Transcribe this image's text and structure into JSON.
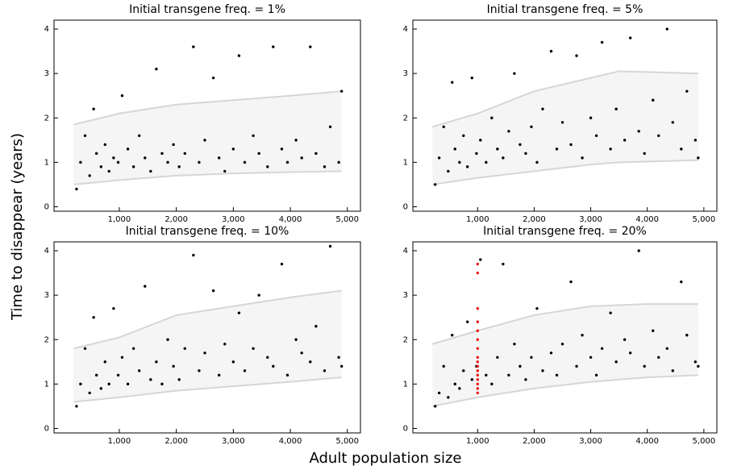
{
  "ylabel": "Time to disappear (years)",
  "xlabel": "Adult population size",
  "chart_data": [
    {
      "type": "scatter",
      "title": "Initial transgene freq. = 1%",
      "xlim": [
        -145,
        5230
      ],
      "ylim": [
        -0.1,
        4.2
      ],
      "xticks": [
        {
          "value": 1000,
          "label": "1,000"
        },
        {
          "value": 2000,
          "label": "2,000"
        },
        {
          "value": 3000,
          "label": "3,000"
        },
        {
          "value": 4000,
          "label": "4,000"
        },
        {
          "value": 5000,
          "label": "5,000"
        }
      ],
      "yticks": [
        0,
        1,
        2,
        3,
        4
      ],
      "band": {
        "color": "#d6d6d6",
        "x": [
          200,
          1000,
          2000,
          3000,
          4000,
          4900
        ],
        "upper": [
          1.85,
          2.1,
          2.3,
          2.4,
          2.5,
          2.6
        ],
        "lower": [
          0.5,
          0.6,
          0.7,
          0.75,
          0.78,
          0.8
        ]
      },
      "series": [
        {
          "color": "#000000",
          "x": [
            250,
            320,
            400,
            480,
            550,
            600,
            680,
            750,
            820,
            900,
            980,
            1050,
            1150,
            1250,
            1350,
            1450,
            1550,
            1650,
            1750,
            1850,
            1950,
            2050,
            2150,
            2300,
            2400,
            2500,
            2650,
            2750,
            2850,
            3000,
            3100,
            3200,
            3350,
            3450,
            3600,
            3700,
            3850,
            3950,
            4100,
            4200,
            4350,
            4450,
            4600,
            4700,
            4850,
            4900
          ],
          "values": [
            0.4,
            1.0,
            1.6,
            0.7,
            2.2,
            1.2,
            0.9,
            1.4,
            0.8,
            1.1,
            1.0,
            2.5,
            1.3,
            0.9,
            1.6,
            1.1,
            0.8,
            3.1,
            1.2,
            1.0,
            1.4,
            0.9,
            1.2,
            3.6,
            1.0,
            1.5,
            2.9,
            1.1,
            0.8,
            1.3,
            3.4,
            1.0,
            1.6,
            1.2,
            0.9,
            3.6,
            1.3,
            1.0,
            1.5,
            1.1,
            3.6,
            1.2,
            0.9,
            1.8,
            1.0,
            2.6
          ]
        }
      ]
    },
    {
      "type": "scatter",
      "title": "Initial transgene freq. = 5%",
      "xlim": [
        -145,
        5230
      ],
      "ylim": [
        -0.1,
        4.2
      ],
      "xticks": [
        {
          "value": 1000,
          "label": "1,000"
        },
        {
          "value": 2000,
          "label": "2,000"
        },
        {
          "value": 3000,
          "label": "3,000"
        },
        {
          "value": 4000,
          "label": "4,000"
        },
        {
          "value": 5000,
          "label": "5,000"
        }
      ],
      "yticks": [
        0,
        1,
        2,
        3,
        4
      ],
      "band": {
        "color": "#d6d6d6",
        "x": [
          200,
          1000,
          2000,
          3000,
          3500,
          4900
        ],
        "upper": [
          1.8,
          2.1,
          2.6,
          2.9,
          3.05,
          3.0
        ],
        "lower": [
          0.5,
          0.65,
          0.8,
          0.95,
          1.0,
          1.05
        ]
      },
      "series": [
        {
          "color": "#000000",
          "x": [
            250,
            320,
            400,
            480,
            550,
            600,
            680,
            750,
            820,
            900,
            980,
            1050,
            1150,
            1250,
            1350,
            1450,
            1550,
            1650,
            1750,
            1850,
            1950,
            2050,
            2150,
            2300,
            2400,
            2500,
            2650,
            2750,
            2850,
            3000,
            3100,
            3200,
            3350,
            3450,
            3600,
            3700,
            3850,
            3950,
            4100,
            4200,
            4350,
            4450,
            4600,
            4700,
            4850,
            4900
          ],
          "values": [
            0.5,
            1.1,
            1.8,
            0.8,
            2.8,
            1.3,
            1.0,
            1.6,
            0.9,
            2.9,
            1.2,
            1.5,
            1.0,
            2.0,
            1.3,
            1.1,
            1.7,
            3.0,
            1.4,
            1.2,
            1.8,
            1.0,
            2.2,
            3.5,
            1.3,
            1.9,
            1.4,
            3.4,
            1.1,
            2.0,
            1.6,
            3.7,
            1.3,
            2.2,
            1.5,
            3.8,
            1.7,
            1.2,
            2.4,
            1.6,
            4.0,
            1.9,
            1.3,
            2.6,
            1.5,
            1.1
          ]
        }
      ]
    },
    {
      "type": "scatter",
      "title": "Initial transgene freq. = 10%",
      "xlim": [
        -145,
        5230
      ],
      "ylim": [
        -0.1,
        4.2
      ],
      "xticks": [
        {
          "value": 1000,
          "label": "1,000"
        },
        {
          "value": 2000,
          "label": "2,000"
        },
        {
          "value": 3000,
          "label": "3,000"
        },
        {
          "value": 4000,
          "label": "4,000"
        },
        {
          "value": 5000,
          "label": "5,000"
        }
      ],
      "yticks": [
        0,
        1,
        2,
        3,
        4
      ],
      "band": {
        "color": "#d6d6d6",
        "x": [
          200,
          1000,
          2000,
          3000,
          4000,
          4900
        ],
        "upper": [
          1.8,
          2.05,
          2.55,
          2.75,
          2.95,
          3.1
        ],
        "lower": [
          0.6,
          0.7,
          0.85,
          0.95,
          1.05,
          1.15
        ]
      },
      "series": [
        {
          "color": "#000000",
          "x": [
            250,
            320,
            400,
            480,
            550,
            600,
            680,
            750,
            820,
            900,
            980,
            1050,
            1150,
            1250,
            1350,
            1450,
            1550,
            1650,
            1750,
            1850,
            1950,
            2050,
            2150,
            2300,
            2400,
            2500,
            2650,
            2750,
            2850,
            3000,
            3100,
            3200,
            3350,
            3450,
            3600,
            3700,
            3850,
            3950,
            4100,
            4200,
            4350,
            4450,
            4600,
            4700,
            4850,
            4900
          ],
          "values": [
            0.5,
            1.0,
            1.8,
            0.8,
            2.5,
            1.2,
            0.9,
            1.5,
            1.0,
            2.7,
            1.2,
            1.6,
            1.0,
            1.8,
            1.3,
            3.2,
            1.1,
            1.5,
            1.0,
            2.0,
            1.4,
            1.1,
            1.8,
            3.9,
            1.3,
            1.7,
            3.1,
            1.2,
            1.9,
            1.5,
            2.6,
            1.3,
            1.8,
            3.0,
            1.6,
            1.4,
            3.7,
            1.2,
            2.0,
            1.7,
            1.5,
            2.3,
            1.3,
            4.1,
            1.6,
            1.4
          ]
        }
      ]
    },
    {
      "type": "scatter",
      "title": "Initial transgene freq. = 20%",
      "xlim": [
        -145,
        5230
      ],
      "ylim": [
        -0.1,
        4.2
      ],
      "xticks": [
        {
          "value": 1000,
          "label": "1,000"
        },
        {
          "value": 2000,
          "label": "2,000"
        },
        {
          "value": 3000,
          "label": "3,000"
        },
        {
          "value": 4000,
          "label": "4,000"
        },
        {
          "value": 5000,
          "label": "5,000"
        }
      ],
      "yticks": [
        0,
        1,
        2,
        3,
        4
      ],
      "band": {
        "color": "#d6d6d6",
        "x": [
          200,
          1000,
          2000,
          3000,
          4000,
          4900
        ],
        "upper": [
          1.9,
          2.2,
          2.55,
          2.75,
          2.8,
          2.8
        ],
        "lower": [
          0.5,
          0.7,
          0.9,
          1.05,
          1.15,
          1.2
        ]
      },
      "series": [
        {
          "color": "#000000",
          "x": [
            250,
            320,
            400,
            480,
            550,
            600,
            680,
            750,
            820,
            900,
            980,
            1050,
            1150,
            1250,
            1350,
            1450,
            1550,
            1650,
            1750,
            1850,
            1950,
            2050,
            2150,
            2300,
            2400,
            2500,
            2650,
            2750,
            2850,
            3000,
            3100,
            3200,
            3350,
            3450,
            3600,
            3700,
            3850,
            3950,
            4100,
            4200,
            4350,
            4450,
            4600,
            4700,
            4850,
            4900
          ],
          "values": [
            0.5,
            0.8,
            1.4,
            0.7,
            2.1,
            1.0,
            0.9,
            1.3,
            2.4,
            1.1,
            1.4,
            3.8,
            1.2,
            1.0,
            1.6,
            3.7,
            1.2,
            1.9,
            1.4,
            1.1,
            1.6,
            2.7,
            1.3,
            1.7,
            1.2,
            1.9,
            3.3,
            1.4,
            2.1,
            1.6,
            1.2,
            1.8,
            2.6,
            1.5,
            2.0,
            1.7,
            4.0,
            1.4,
            2.2,
            1.6,
            1.8,
            1.3,
            3.3,
            2.1,
            1.5,
            1.4
          ]
        },
        {
          "color": "#ee1111",
          "x": [
            1000,
            1000,
            1000,
            1000,
            1000,
            1000,
            1000,
            1000,
            1000,
            1000,
            1000,
            1000,
            1000,
            1000,
            1000,
            1000
          ],
          "values": [
            0.8,
            0.9,
            1.0,
            1.1,
            1.2,
            1.3,
            1.4,
            1.5,
            1.6,
            1.8,
            2.0,
            2.2,
            2.4,
            2.7,
            3.5,
            3.7
          ]
        }
      ]
    }
  ]
}
